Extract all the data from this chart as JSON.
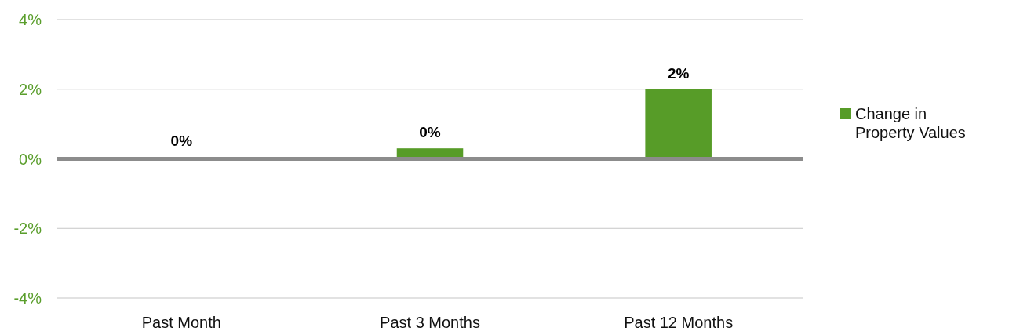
{
  "chart_data": {
    "type": "bar",
    "categories": [
      "Past Month",
      "Past 3 Months",
      "Past 12 Months"
    ],
    "series": [
      {
        "name": "Change in Property Values",
        "color": "#579c28",
        "values": [
          0,
          0.3,
          2.0
        ],
        "value_labels": [
          "0%",
          "0%",
          "2%"
        ]
      }
    ],
    "ylim": [
      -4,
      4
    ],
    "yticks": [
      {
        "value": -4,
        "label": "-4%"
      },
      {
        "value": -2,
        "label": "-2%"
      },
      {
        "value": 0,
        "label": "0%"
      },
      {
        "value": 2,
        "label": "2%"
      },
      {
        "value": 4,
        "label": "4%"
      }
    ],
    "grid": "y",
    "legend": "right"
  }
}
